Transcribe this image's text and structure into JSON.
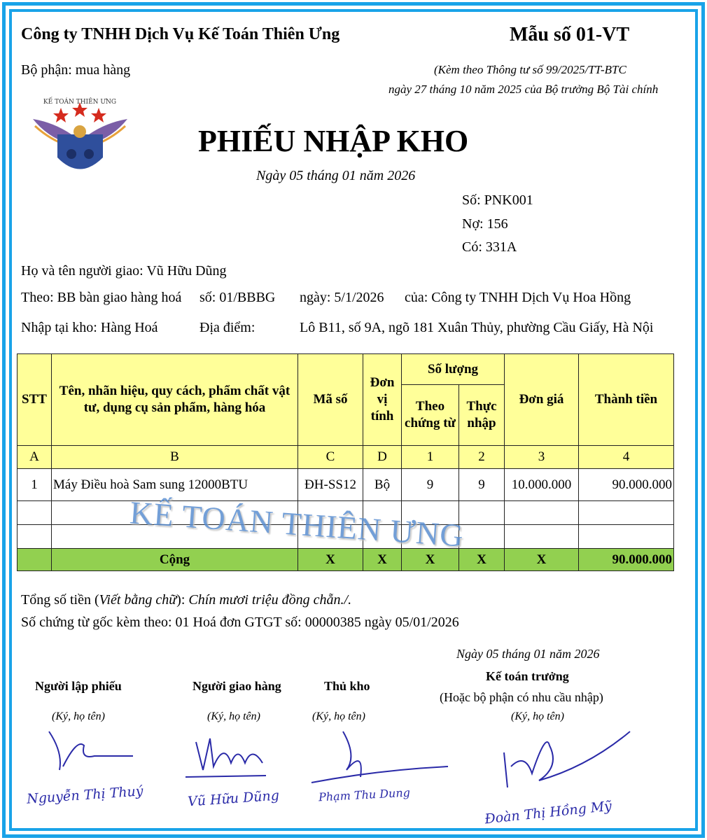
{
  "company": "Công ty TNHH Dịch Vụ Kế Toán Thiên Ưng",
  "form_no": "Mẫu số 01-VT",
  "department": "Bộ phận: mua hàng",
  "circular_line1": "(Kèm theo Thông tư số 99/2025/TT-BTC",
  "circular_line2": "ngày 27 tháng 10 năm 2025 của Bộ trưởng Bộ Tài chính",
  "logo_text": "KẾ TOÁN THIÊN ƯNG",
  "title": "PHIẾU NHẬP KHO",
  "date": "Ngày 05 tháng 01 năm 2026",
  "so": "Số: PNK001",
  "no": "Nợ: 156",
  "co": "Có: 331A",
  "deliverer": "Họ và tên người giao: Vũ Hữu Dũng",
  "theo": "Theo: BB bàn giao hàng hoá",
  "theo_so": "số: 01/BBBG",
  "theo_ngay": "ngày: 5/1/2026",
  "theo_cua": "của: Công ty TNHH Dịch Vụ Hoa Hồng",
  "kho": "Nhập tại kho: Hàng Hoá",
  "dia_diem_label": "Địa điểm:",
  "dia_diem": "Lô B11, số 9A, ngõ 181 Xuân Thủy, phường Cầu Giấy, Hà Nội",
  "table": {
    "headers": {
      "stt": "STT",
      "name": "Tên, nhãn hiệu, quy cách, phẩm chất vật tư, dụng cụ sản phẩm, hàng hóa",
      "code": "Mã số",
      "unit": "Đơn vị tính",
      "qty": "Số lượng",
      "qty_doc": "Theo chứng từ",
      "qty_actual": "Thực nhập",
      "price": "Đơn giá",
      "amount": "Thành tiền"
    },
    "letters": [
      "A",
      "B",
      "C",
      "D",
      "1",
      "2",
      "3",
      "4"
    ],
    "rows": [
      {
        "stt": "1",
        "name": "Máy Điều hoà Sam sung 12000BTU",
        "code": "ĐH-SS12",
        "unit": "Bộ",
        "qty_doc": "9",
        "qty_actual": "9",
        "price": "10.000.000",
        "amount": "90.000.000"
      }
    ],
    "total": {
      "label": "Cộng",
      "x": "X",
      "amount": "90.000.000"
    }
  },
  "watermark": "KẾ TOÁN THIÊN ƯNG",
  "total_words_prefix": "Tổng số tiền (",
  "total_words_label": "Viết bằng chữ",
  "total_words_mid": "): ",
  "total_words": "Chín mươi triệu đồng chẵn./.",
  "attached": "Số chứng từ gốc kèm theo: 01 Hoá đơn GTGT số: 00000385 ngày 05/01/2026",
  "sign_date": "Ngày 05 tháng 01 năm 2026",
  "signers": [
    {
      "role": "Người lập phiếu",
      "note": "(Ký, họ tên)",
      "name": "Nguyễn Thị Thuý"
    },
    {
      "role": "Người giao hàng",
      "note": "(Ký, họ tên)",
      "name": "Vũ Hữu Dũng"
    },
    {
      "role": "Thủ kho",
      "note": "(Ký, họ tên)",
      "name": "Phạm Thu Dung"
    },
    {
      "role": "Kế toán trưởng",
      "role2": "(Hoặc bộ phận có nhu cầu nhập)",
      "note": "(Ký, họ tên)",
      "name": "Đoàn Thị Hồng Mỹ"
    }
  ],
  "colors": {
    "border": "#1aa3e8",
    "header_bg": "#ffff99",
    "total_bg": "#92d050",
    "ink": "#2a2aa8"
  }
}
